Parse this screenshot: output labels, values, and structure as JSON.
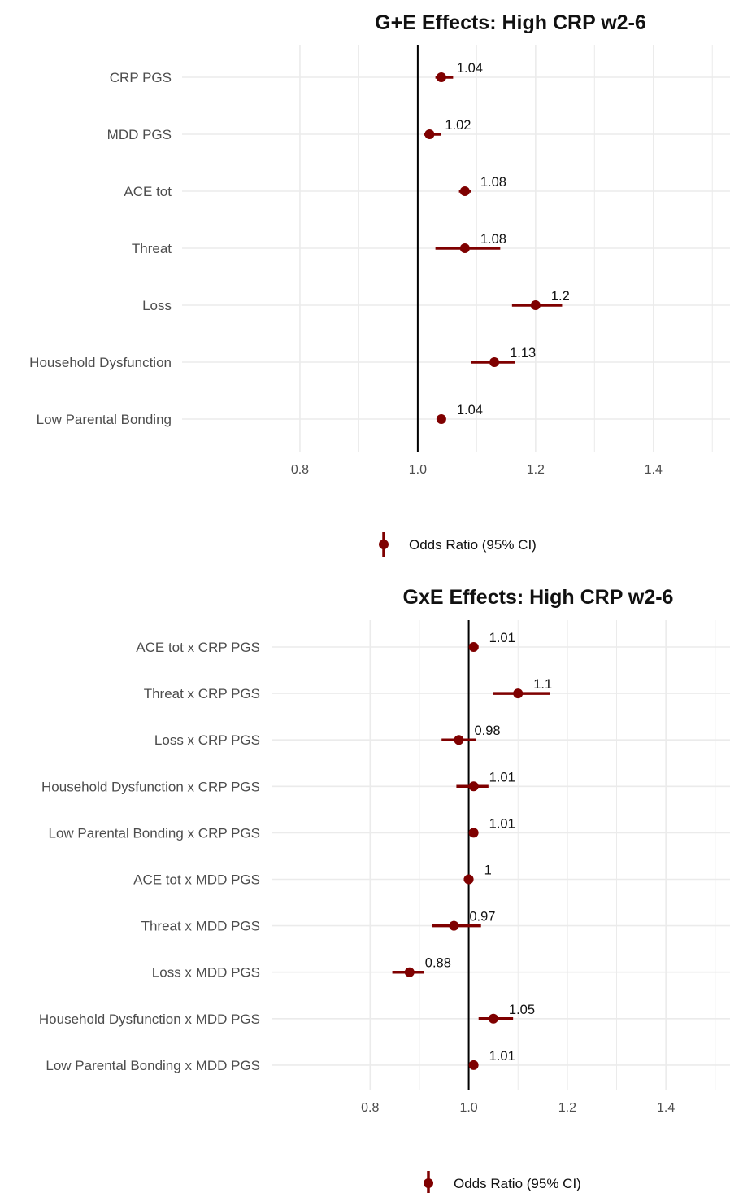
{
  "colors": {
    "point": "#7f0000",
    "grid": "#ebebeb",
    "ref_line": "#000000"
  },
  "chart_data": [
    {
      "type": "forest",
      "title": "G+E Effects: High CRP w2-6",
      "xlim": [
        0.6,
        1.53
      ],
      "x_ticks": [
        0.8,
        1.0,
        1.2,
        1.4
      ],
      "x_tick_labels": [
        "0.8",
        "1.0",
        "1.2",
        "1.4"
      ],
      "reference_line": 1.0,
      "grid": true,
      "legend_label": "Odds Ratio (95% CI)",
      "legend_position": "bottom",
      "rows": [
        {
          "label": "CRP PGS",
          "or": 1.04,
          "lo": 1.03,
          "hi": 1.06,
          "or_label": "1.04"
        },
        {
          "label": "MDD PGS",
          "or": 1.02,
          "lo": 1.01,
          "hi": 1.04,
          "or_label": "1.02"
        },
        {
          "label": "ACE tot",
          "or": 1.08,
          "lo": 1.07,
          "hi": 1.09,
          "or_label": "1.08"
        },
        {
          "label": "Threat",
          "or": 1.08,
          "lo": 1.03,
          "hi": 1.14,
          "or_label": "1.08"
        },
        {
          "label": "Loss",
          "or": 1.2,
          "lo": 1.16,
          "hi": 1.245,
          "or_label": "1.2"
        },
        {
          "label": "Household Dysfunction",
          "or": 1.13,
          "lo": 1.09,
          "hi": 1.165,
          "or_label": "1.13"
        },
        {
          "label": "Low Parental Bonding",
          "or": 1.04,
          "lo": 1.035,
          "hi": 1.045,
          "or_label": "1.04"
        }
      ]
    },
    {
      "type": "forest",
      "title": "GxE Effects: High CRP w2-6",
      "xlim": [
        0.6,
        1.53
      ],
      "x_ticks": [
        0.8,
        1.0,
        1.2,
        1.4
      ],
      "x_tick_labels": [
        "0.8",
        "1.0",
        "1.2",
        "1.4"
      ],
      "reference_line": 1.0,
      "grid": true,
      "legend_label": "Odds Ratio (95% CI)",
      "legend_position": "bottom",
      "rows": [
        {
          "label": "ACE tot x CRP PGS",
          "or": 1.01,
          "lo": 1.005,
          "hi": 1.02,
          "or_label": "1.01"
        },
        {
          "label": "Threat x CRP PGS",
          "or": 1.1,
          "lo": 1.05,
          "hi": 1.165,
          "or_label": "1.1"
        },
        {
          "label": "Loss x CRP PGS",
          "or": 0.98,
          "lo": 0.945,
          "hi": 1.015,
          "or_label": "0.98"
        },
        {
          "label": "Household Dysfunction x CRP PGS",
          "or": 1.01,
          "lo": 0.975,
          "hi": 1.04,
          "or_label": "1.01"
        },
        {
          "label": "Low Parental Bonding x CRP PGS",
          "or": 1.01,
          "lo": 1.005,
          "hi": 1.015,
          "or_label": "1.01"
        },
        {
          "label": "ACE tot x MDD PGS",
          "or": 1.0,
          "lo": 0.99,
          "hi": 1.005,
          "or_label": "1"
        },
        {
          "label": "Threat x MDD PGS",
          "or": 0.97,
          "lo": 0.925,
          "hi": 1.025,
          "or_label": "0.97"
        },
        {
          "label": "Loss x MDD PGS",
          "or": 0.88,
          "lo": 0.845,
          "hi": 0.91,
          "or_label": "0.88"
        },
        {
          "label": "Household Dysfunction x MDD PGS",
          "or": 1.05,
          "lo": 1.02,
          "hi": 1.09,
          "or_label": "1.05"
        },
        {
          "label": "Low Parental Bonding x MDD PGS",
          "or": 1.01,
          "lo": 1.005,
          "hi": 1.015,
          "or_label": "1.01"
        }
      ]
    }
  ]
}
